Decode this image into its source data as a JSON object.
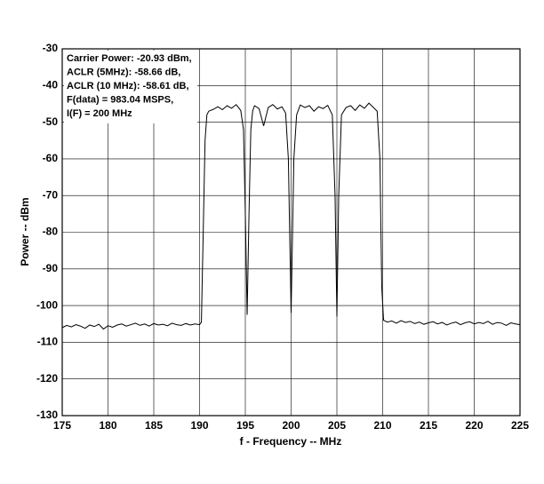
{
  "chart_data": {
    "type": "line",
    "annotation": [
      "Carrier Power: -20.93 dBm,",
      "ACLR (5MHz): -58.66 dB,",
      "ACLR (10 MHz): -58.61 dB,",
      "F(data) = 983.04 MSPS,",
      "I(F) = 200 MHz"
    ],
    "xlabel": "f - Frequency -- MHz",
    "ylabel": "Power -- dBm",
    "x": [
      175,
      175.5,
      176,
      176.5,
      177,
      177.5,
      178,
      178.5,
      179,
      179.5,
      180,
      180.5,
      181,
      181.5,
      182,
      182.5,
      183,
      183.5,
      184,
      184.5,
      185,
      185.5,
      186,
      186.5,
      187,
      187.5,
      188,
      188.5,
      189,
      189.5,
      190,
      190.2,
      190.4,
      190.6,
      190.8,
      191,
      191.5,
      192,
      192.5,
      193,
      193.5,
      194,
      194.5,
      194.8,
      195,
      195.2,
      195.4,
      195.6,
      195.8,
      196,
      196.5,
      197,
      197.5,
      198,
      198.5,
      199,
      199.4,
      199.7,
      200,
      200.3,
      200.6,
      201,
      201.5,
      202,
      202.5,
      203,
      203.5,
      204,
      204.5,
      204.8,
      205,
      205.2,
      205.5,
      206,
      206.5,
      207,
      207.5,
      208,
      208.5,
      209,
      209.4,
      209.7,
      209.9,
      210.1,
      210.5,
      211,
      211.5,
      212,
      212.5,
      213,
      213.5,
      214,
      214.5,
      215,
      215.5,
      216,
      216.5,
      217,
      217.5,
      218,
      218.5,
      219,
      219.5,
      220,
      220.5,
      221,
      221.5,
      222,
      222.5,
      223,
      223.5,
      224,
      224.5,
      225
    ],
    "values": [
      -106,
      -105.4,
      -105.8,
      -105.2,
      -105.6,
      -106.2,
      -105.3,
      -105.7,
      -105.1,
      -106.4,
      -105.5,
      -105.9,
      -105.3,
      -105.0,
      -105.6,
      -105.2,
      -104.8,
      -105.4,
      -105.0,
      -105.6,
      -104.9,
      -105.3,
      -105.1,
      -105.5,
      -104.8,
      -105.2,
      -105.4,
      -104.9,
      -105.3,
      -105.0,
      -105.2,
      -104.5,
      -80,
      -55,
      -48,
      -47,
      -46.5,
      -45.8,
      -46.6,
      -45.5,
      -46.2,
      -45.2,
      -46.8,
      -52,
      -75,
      -102.5,
      -75,
      -52,
      -47,
      -45.5,
      -46.3,
      -51,
      -46,
      -45.2,
      -46.4,
      -45.8,
      -47.5,
      -60,
      -102,
      -60,
      -48,
      -45.3,
      -46,
      -45.5,
      -47,
      -45.8,
      -46.3,
      -45.4,
      -48,
      -70,
      -103,
      -70,
      -48,
      -46,
      -45.5,
      -46.8,
      -45.3,
      -46.2,
      -44.8,
      -46,
      -47,
      -60,
      -95,
      -104,
      -104.5,
      -104.2,
      -104.8,
      -104.1,
      -104.6,
      -104.3,
      -104.9,
      -104.5,
      -105.1,
      -104.7,
      -104.4,
      -105.0,
      -104.6,
      -105.3,
      -104.8,
      -104.5,
      -105.2,
      -104.7,
      -104.4,
      -105.0,
      -104.6,
      -104.9,
      -104.3,
      -105.1,
      -104.6,
      -104.8,
      -105.4,
      -104.7,
      -105.0,
      -105.2
    ],
    "color": "#000000",
    "xlim": [
      175,
      225
    ],
    "xticks": [
      175,
      180,
      185,
      190,
      195,
      200,
      205,
      210,
      215,
      220,
      225
    ],
    "ylim": [
      -130,
      -30
    ],
    "yticks": [
      -30,
      -40,
      -50,
      -60,
      -70,
      -80,
      -90,
      -100,
      -110,
      -120,
      -130
    ],
    "grid": true
  }
}
